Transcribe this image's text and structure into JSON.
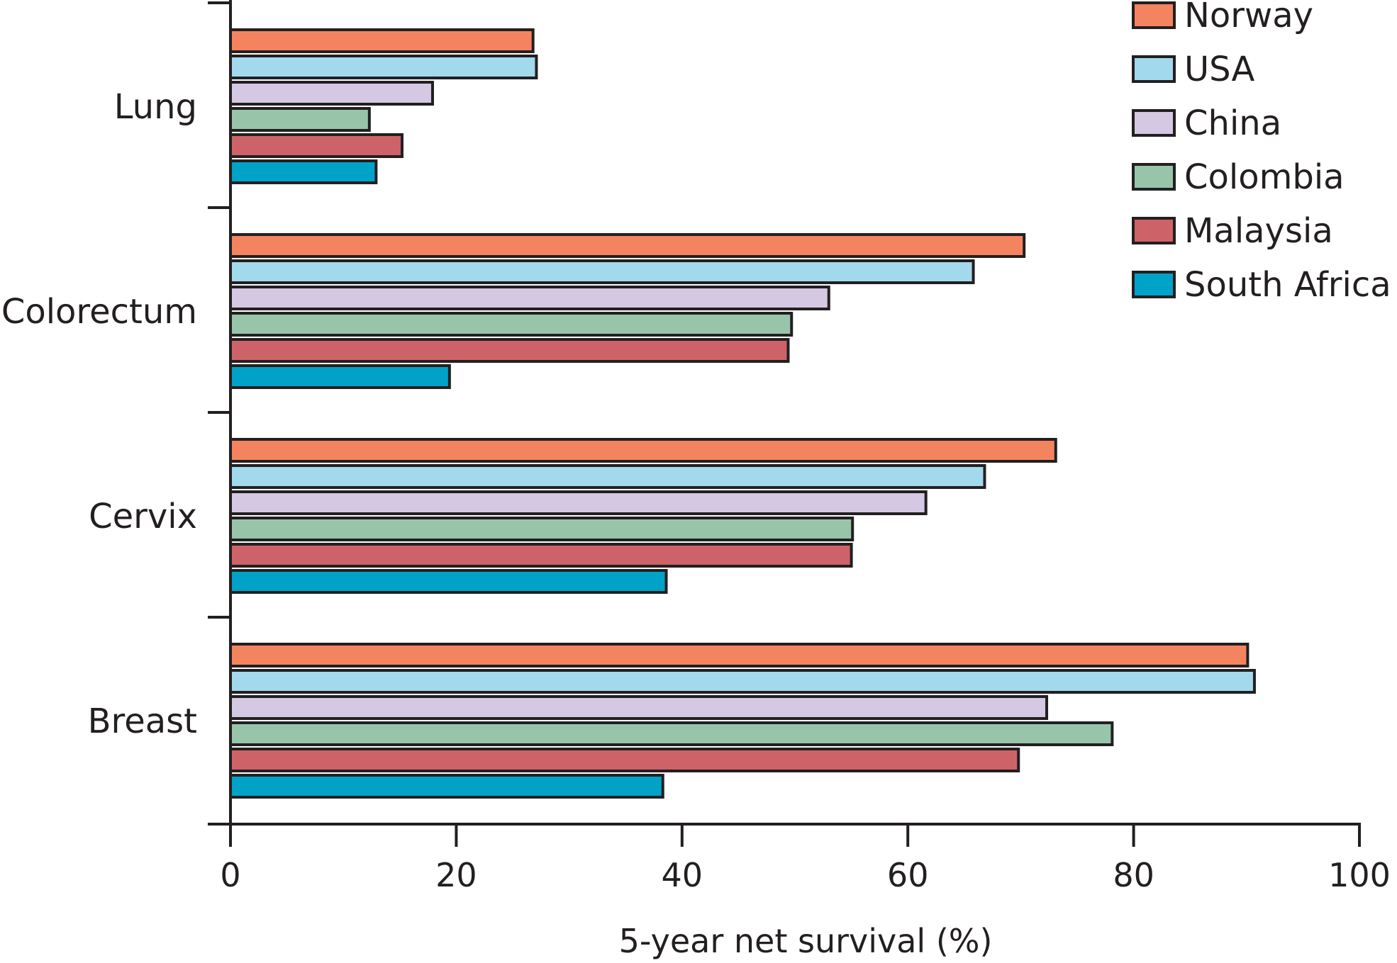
{
  "chart_data": {
    "type": "bar",
    "orientation": "horizontal",
    "title": "",
    "xlabel": "5-year net survival (%)",
    "ylabel": "",
    "xlim": [
      0,
      100
    ],
    "x_ticks": [
      "0",
      "20",
      "40",
      "60",
      "80",
      "100"
    ],
    "grid": false,
    "legend_position": "top-right",
    "categories": [
      "Lung",
      "Colorectum",
      "Cervix",
      "Breast"
    ],
    "series": [
      {
        "name": "Norway",
        "color": "#f4845f",
        "values": [
          26.8,
          70.3,
          73.1,
          90.1
        ]
      },
      {
        "name": "USA",
        "color": "#a2d9ec",
        "values": [
          27.1,
          65.8,
          66.8,
          90.7
        ]
      },
      {
        "name": "China",
        "color": "#d5c8e3",
        "values": [
          17.9,
          53.0,
          61.6,
          72.3
        ]
      },
      {
        "name": "Colombia",
        "color": "#98c5a9",
        "values": [
          12.3,
          49.7,
          55.1,
          78.1
        ]
      },
      {
        "name": "Malaysia",
        "color": "#cd6368",
        "values": [
          15.2,
          49.4,
          55.0,
          69.8
        ]
      },
      {
        "name": "South Africa",
        "color": "#00a2c8",
        "values": [
          12.9,
          19.4,
          38.6,
          38.3
        ]
      }
    ]
  }
}
